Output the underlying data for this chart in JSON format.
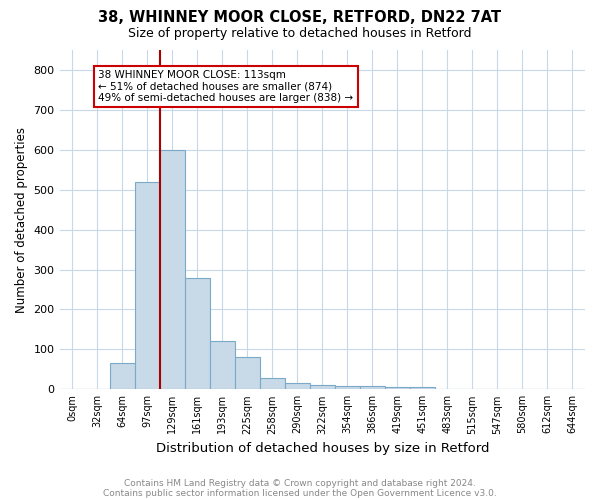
{
  "title1": "38, WHINNEY MOOR CLOSE, RETFORD, DN22 7AT",
  "title2": "Size of property relative to detached houses in Retford",
  "xlabel": "Distribution of detached houses by size in Retford",
  "ylabel": "Number of detached properties",
  "bar_labels": [
    "0sqm",
    "32sqm",
    "64sqm",
    "97sqm",
    "129sqm",
    "161sqm",
    "193sqm",
    "225sqm",
    "258sqm",
    "290sqm",
    "322sqm",
    "354sqm",
    "386sqm",
    "419sqm",
    "451sqm",
    "483sqm",
    "515sqm",
    "547sqm",
    "580sqm",
    "612sqm",
    "644sqm"
  ],
  "bar_values": [
    0,
    0,
    65,
    520,
    600,
    280,
    120,
    80,
    28,
    15,
    10,
    8,
    8,
    6,
    5,
    0,
    0,
    0,
    0,
    0,
    0
  ],
  "bar_color": "#c8d9e8",
  "bar_edge_color": "#7aaac8",
  "ylim": [
    0,
    850
  ],
  "yticks": [
    0,
    100,
    200,
    300,
    400,
    500,
    600,
    700,
    800
  ],
  "property_line_x": 3.5,
  "property_line_color": "#aa0000",
  "annotation_text": "38 WHINNEY MOOR CLOSE: 113sqm\n← 51% of detached houses are smaller (874)\n49% of semi-detached houses are larger (838) →",
  "annotation_box_color": "#ffffff",
  "annotation_box_edge": "#cc0000",
  "footer1": "Contains HM Land Registry data © Crown copyright and database right 2024.",
  "footer2": "Contains public sector information licensed under the Open Government Licence v3.0.",
  "fig_width": 6.0,
  "fig_height": 5.0,
  "dpi": 100,
  "background_color": "#ffffff",
  "grid_color": "#c8d8e8"
}
